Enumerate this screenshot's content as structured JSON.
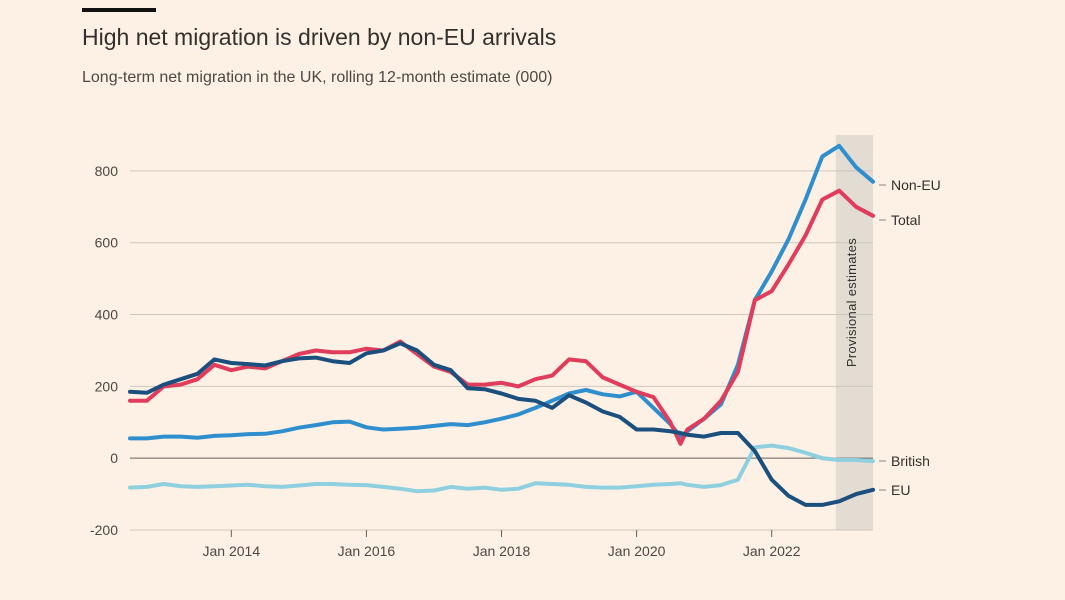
{
  "header": {
    "title": "High net migration is driven by non-EU arrivals",
    "subtitle": "Long-term net migration in the UK, rolling 12-month estimate (000)"
  },
  "chart_data": {
    "type": "line",
    "title": "High net migration is driven by non-EU arrivals",
    "subtitle": "Long-term net migration in the UK, rolling 12-month estimate (000)",
    "xlabel": "",
    "ylabel": "",
    "ylim": [
      -200,
      900
    ],
    "xlim": [
      2012.5,
      2023.5
    ],
    "y_ticks": [
      800,
      600,
      400,
      200,
      0,
      -200
    ],
    "y_tick_labels": [
      "800",
      "600",
      "400",
      "200",
      "0",
      "-200"
    ],
    "x_ticks": [
      2014,
      2016,
      2018,
      2020,
      2022
    ],
    "x_tick_labels": [
      "Jan 2014",
      "Jan 2016",
      "Jan 2018",
      "Jan 2020",
      "Jan 2022"
    ],
    "annotation": "Provisional estimates",
    "provisional_range": [
      2022.95,
      2023.5
    ],
    "series": [
      {
        "name": "Non-EU",
        "label": "Non-EU",
        "color": "#2f8fce",
        "width": 4,
        "x": [
          2012.5,
          2012.75,
          2013.0,
          2013.25,
          2013.5,
          2013.75,
          2014.0,
          2014.25,
          2014.5,
          2014.75,
          2015.0,
          2015.25,
          2015.5,
          2015.75,
          2016.0,
          2016.25,
          2016.5,
          2016.75,
          2017.0,
          2017.25,
          2017.5,
          2017.75,
          2018.0,
          2018.25,
          2018.5,
          2018.75,
          2019.0,
          2019.25,
          2019.5,
          2019.75,
          2020.0,
          2020.25,
          2020.5,
          2020.65,
          2020.75,
          2021.0,
          2021.25,
          2021.5,
          2021.75,
          2022.0,
          2022.25,
          2022.5,
          2022.75,
          2023.0,
          2023.25,
          2023.5
        ],
        "y": [
          55,
          55,
          60,
          60,
          57,
          62,
          64,
          67,
          68,
          75,
          85,
          92,
          100,
          102,
          86,
          80,
          82,
          85,
          90,
          95,
          92,
          100,
          110,
          122,
          140,
          160,
          180,
          190,
          178,
          172,
          185,
          140,
          95,
          60,
          75,
          110,
          150,
          260,
          440,
          520,
          610,
          720,
          840,
          870,
          810,
          770
        ]
      },
      {
        "name": "Total",
        "label": "Total",
        "color": "#e03c5b",
        "width": 4,
        "x": [
          2012.5,
          2012.75,
          2013.0,
          2013.25,
          2013.5,
          2013.75,
          2014.0,
          2014.25,
          2014.5,
          2014.75,
          2015.0,
          2015.25,
          2015.5,
          2015.75,
          2016.0,
          2016.25,
          2016.5,
          2016.75,
          2017.0,
          2017.25,
          2017.5,
          2017.75,
          2018.0,
          2018.25,
          2018.5,
          2018.75,
          2019.0,
          2019.25,
          2019.5,
          2019.75,
          2020.0,
          2020.25,
          2020.5,
          2020.65,
          2020.75,
          2021.0,
          2021.25,
          2021.5,
          2021.75,
          2022.0,
          2022.25,
          2022.5,
          2022.75,
          2023.0,
          2023.25,
          2023.5
        ],
        "y": [
          160,
          160,
          200,
          205,
          220,
          260,
          245,
          255,
          250,
          270,
          290,
          300,
          295,
          295,
          305,
          300,
          325,
          290,
          255,
          240,
          205,
          205,
          210,
          200,
          220,
          230,
          275,
          270,
          225,
          205,
          185,
          170,
          100,
          40,
          80,
          110,
          160,
          240,
          440,
          465,
          540,
          620,
          720,
          745,
          700,
          675
        ]
      },
      {
        "name": "EU",
        "label": "EU",
        "color": "#1a4f7e",
        "width": 4,
        "x": [
          2012.5,
          2012.75,
          2013.0,
          2013.25,
          2013.5,
          2013.75,
          2014.0,
          2014.25,
          2014.5,
          2014.75,
          2015.0,
          2015.25,
          2015.5,
          2015.75,
          2016.0,
          2016.25,
          2016.5,
          2016.75,
          2017.0,
          2017.25,
          2017.5,
          2017.75,
          2018.0,
          2018.25,
          2018.5,
          2018.75,
          2019.0,
          2019.25,
          2019.5,
          2019.75,
          2020.0,
          2020.25,
          2020.5,
          2020.65,
          2020.75,
          2021.0,
          2021.25,
          2021.5,
          2021.75,
          2022.0,
          2022.25,
          2022.5,
          2022.75,
          2023.0,
          2023.25,
          2023.5
        ],
        "y": [
          185,
          182,
          205,
          220,
          235,
          275,
          265,
          262,
          258,
          270,
          278,
          280,
          270,
          265,
          292,
          300,
          320,
          300,
          260,
          245,
          195,
          192,
          180,
          165,
          160,
          140,
          175,
          155,
          130,
          115,
          80,
          80,
          75,
          70,
          65,
          60,
          70,
          70,
          20,
          -60,
          -105,
          -130,
          -130,
          -120,
          -100,
          -88
        ]
      },
      {
        "name": "British",
        "label": "British",
        "color": "#8fd0e0",
        "width": 4,
        "x": [
          2012.5,
          2012.75,
          2013.0,
          2013.25,
          2013.5,
          2013.75,
          2014.0,
          2014.25,
          2014.5,
          2014.75,
          2015.0,
          2015.25,
          2015.5,
          2015.75,
          2016.0,
          2016.25,
          2016.5,
          2016.75,
          2017.0,
          2017.25,
          2017.5,
          2017.75,
          2018.0,
          2018.25,
          2018.5,
          2018.75,
          2019.0,
          2019.25,
          2019.5,
          2019.75,
          2020.0,
          2020.25,
          2020.5,
          2020.65,
          2020.75,
          2021.0,
          2021.25,
          2021.5,
          2021.75,
          2022.0,
          2022.25,
          2022.5,
          2022.75,
          2023.0,
          2023.25,
          2023.5
        ],
        "y": [
          -82,
          -80,
          -72,
          -78,
          -80,
          -78,
          -76,
          -74,
          -78,
          -80,
          -76,
          -72,
          -72,
          -74,
          -75,
          -80,
          -85,
          -92,
          -90,
          -80,
          -85,
          -82,
          -88,
          -85,
          -70,
          -72,
          -74,
          -80,
          -82,
          -82,
          -78,
          -74,
          -72,
          -70,
          -74,
          -80,
          -75,
          -60,
          30,
          35,
          28,
          15,
          0,
          -5,
          -5,
          -8
        ]
      }
    ]
  }
}
